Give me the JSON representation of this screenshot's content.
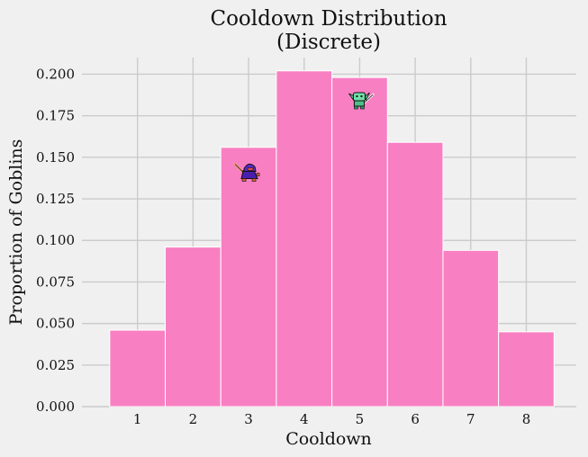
{
  "chart_data": {
    "type": "bar",
    "title": [
      "Cooldown Distribution",
      "(Discrete)"
    ],
    "xlabel": "Cooldown",
    "ylabel": "Proportion of Goblins",
    "categories": [
      1,
      2,
      3,
      4,
      5,
      6,
      7,
      8
    ],
    "values": [
      0.046,
      0.096,
      0.156,
      0.202,
      0.198,
      0.159,
      0.094,
      0.045
    ],
    "ylim": [
      0,
      0.21
    ],
    "xlim": [
      0.0,
      8.9
    ],
    "yticks": [
      0.0,
      0.025,
      0.05,
      0.075,
      0.1,
      0.125,
      0.15,
      0.175,
      0.2
    ],
    "ytick_labels": [
      "0.000",
      "0.025",
      "0.050",
      "0.075",
      "0.100",
      "0.125",
      "0.150",
      "0.175",
      "0.200"
    ],
    "xticks": [
      1,
      2,
      3,
      4,
      5,
      6,
      7,
      8
    ],
    "xtick_labels": [
      "1",
      "2",
      "3",
      "4",
      "5",
      "6",
      "7",
      "8"
    ],
    "grid": true,
    "colors": {
      "background": "#f0f0f0",
      "bar": "#f87fc2",
      "bar_edge": "#ffffff",
      "grid": "#cbcbcb",
      "text": "#111111"
    },
    "icons": [
      {
        "name": "purple-goblin-icon",
        "x": 3,
        "y": 0.141
      },
      {
        "name": "green-goblin-icon",
        "x": 5,
        "y": 0.184
      }
    ]
  }
}
